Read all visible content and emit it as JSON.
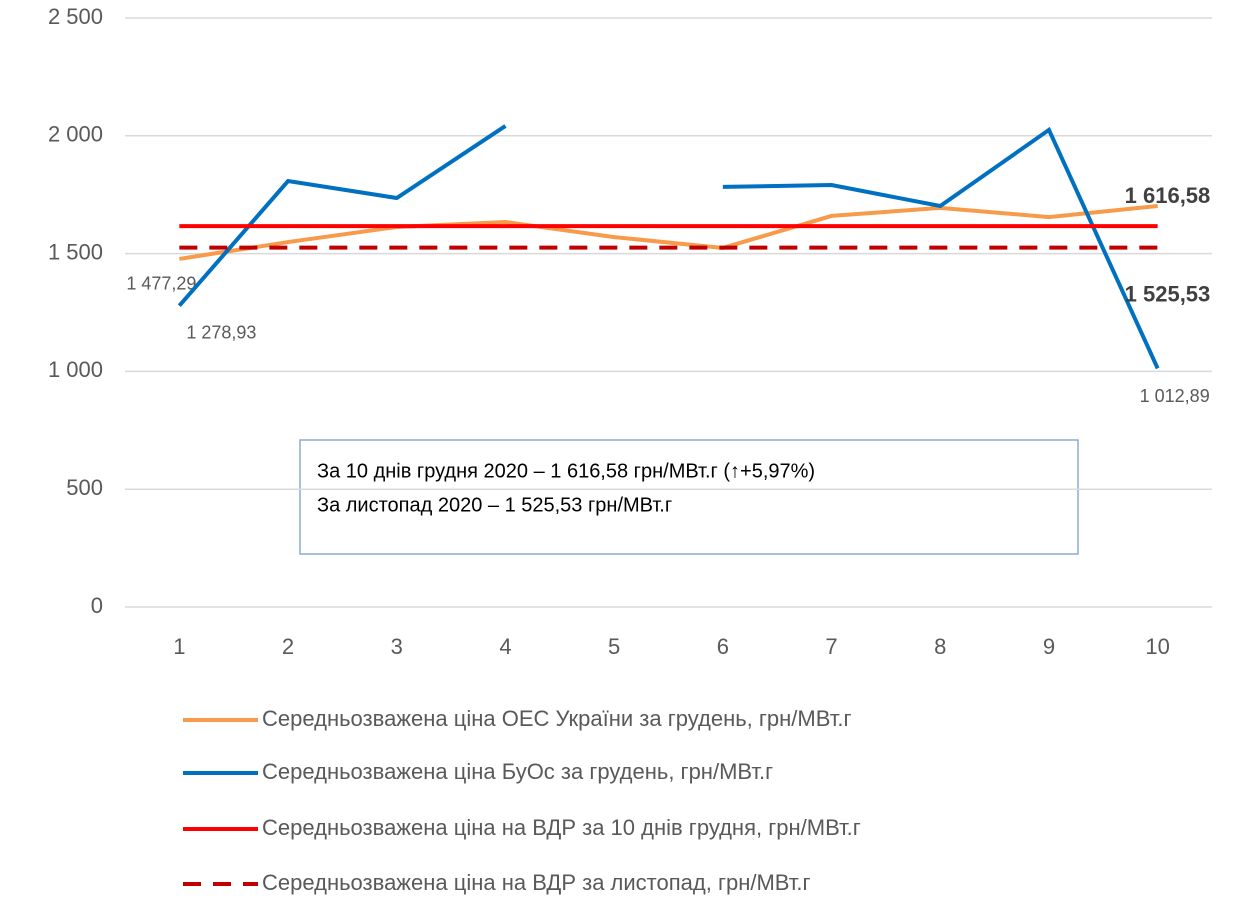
{
  "chart_data": {
    "type": "line",
    "categories": [
      "1",
      "2",
      "3",
      "4",
      "5",
      "6",
      "7",
      "8",
      "9",
      "10"
    ],
    "ylim": [
      0,
      2500
    ],
    "yticks": [
      0,
      500,
      {
        "value": 1000,
        "label": "1 000"
      },
      {
        "value": 1500,
        "label": "1 500"
      },
      {
        "value": 2000,
        "label": "2 000"
      },
      {
        "value": 2500,
        "label": "2 500"
      }
    ],
    "grid": true,
    "series": [
      {
        "name": "Середньозважена ціна ОЕС України за грудень, грн/МВт.г",
        "color": "#f79a4a",
        "dash": false,
        "values": [
          1477.29,
          1549,
          1613,
          1634,
          1570,
          1524,
          1660,
          1694,
          1655,
          1702
        ],
        "value_labels": [
          "1 477,29",
          null,
          null,
          null,
          null,
          null,
          null,
          null,
          null,
          null
        ]
      },
      {
        "name": "Середньозважена ціна БуОс за грудень, грн/МВт.г",
        "color": "#0070c0",
        "dash": false,
        "values": [
          1278.93,
          1808,
          1736,
          2042,
          null,
          1783,
          1791,
          1702,
          2025,
          1012.89
        ],
        "value_labels": [
          "1 278,93",
          null,
          null,
          null,
          null,
          null,
          null,
          null,
          null,
          "1 012,89"
        ]
      },
      {
        "name": "Середньозважена ціна на ВДР за 10 днів грудня, грн/МВт.г",
        "color": "#ff0000",
        "dash": false,
        "values": [
          1616.58,
          1616.58,
          1616.58,
          1616.58,
          1616.58,
          1616.58,
          1616.58,
          1616.58,
          1616.58,
          1616.58
        ],
        "value_labels": [
          null,
          null,
          null,
          null,
          null,
          null,
          null,
          null,
          null,
          "1 616,58"
        ]
      },
      {
        "name": "Середньозважена ціна на ВДР за листопад, грн/МВт.г",
        "color": "#c00000",
        "dash": true,
        "values": [
          1525.53,
          1525.53,
          1525.53,
          1525.53,
          1525.53,
          1525.53,
          1525.53,
          1525.53,
          1525.53,
          1525.53
        ],
        "value_labels": [
          null,
          null,
          null,
          null,
          null,
          null,
          null,
          null,
          null,
          "1 525,53"
        ]
      }
    ],
    "annotations": [
      "За 10 днів грудня 2020 – 1 616,58 грн/МВт.г (↑+5,97%)",
      "За листопад 2020 – 1 525,53 грн/МВт.г"
    ]
  }
}
